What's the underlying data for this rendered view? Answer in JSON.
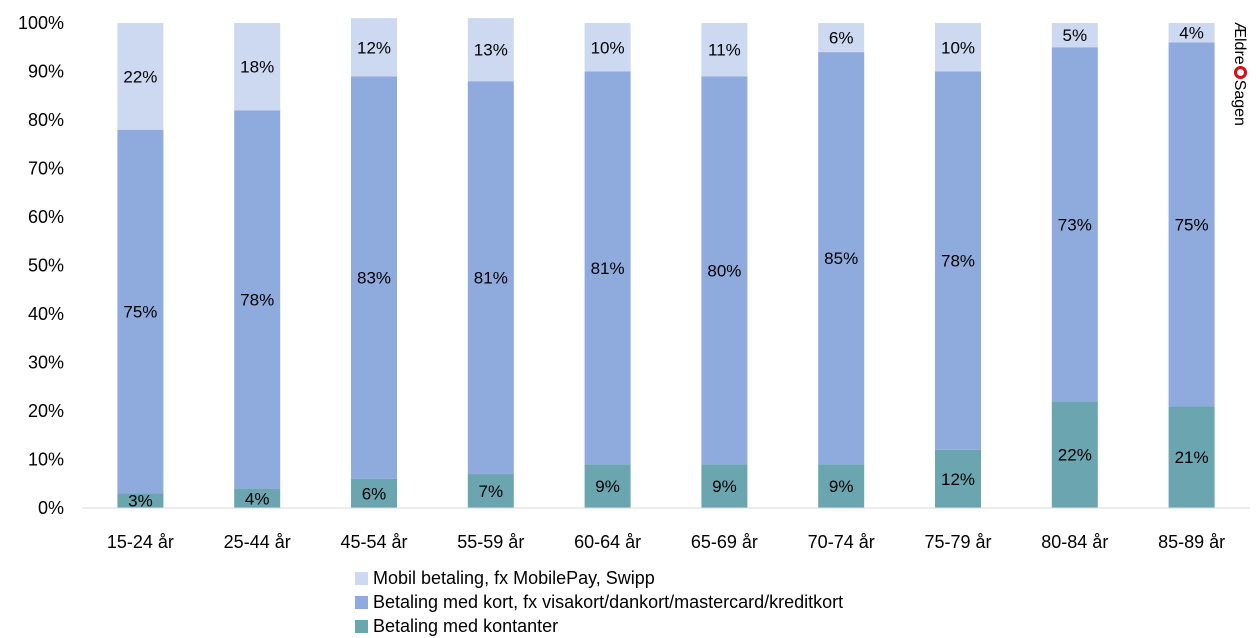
{
  "chart_data": {
    "type": "bar",
    "stacked": true,
    "categories": [
      "15-24 år",
      "25-44 år",
      "45-54 år",
      "55-59 år",
      "60-64 år",
      "65-69 år",
      "70-74 år",
      "75-79 år",
      "80-84 år",
      "85-89 år"
    ],
    "series": [
      {
        "name": "Betaling med kontanter",
        "color": "#6aa5b0",
        "values": [
          3,
          4,
          6,
          7,
          9,
          9,
          9,
          12,
          22,
          21
        ],
        "labels": [
          "3%",
          "4%",
          "6%",
          "7%",
          "9%",
          "9%",
          "9%",
          "12%",
          "22%",
          "21%"
        ]
      },
      {
        "name": "Betaling med kort, fx visakort/dankort/mastercard/kreditkort",
        "color": "#8faadc",
        "values": [
          75,
          78,
          83,
          81,
          81,
          80,
          85,
          78,
          73,
          75
        ],
        "labels": [
          "75%",
          "78%",
          "83%",
          "81%",
          "81%",
          "80%",
          "85%",
          "78%",
          "73%",
          "75%"
        ]
      },
      {
        "name": "Mobil betaling, fx MobilePay, Swipp",
        "color": "#ccd9f0",
        "values": [
          22,
          18,
          12,
          13,
          10,
          11,
          6,
          10,
          5,
          4
        ],
        "labels": [
          "22%",
          "18%",
          "12%",
          "13%",
          "10%",
          "11%",
          "6%",
          "10%",
          "5%",
          "4%"
        ]
      }
    ],
    "yticks": [
      "0%",
      "10%",
      "20%",
      "30%",
      "40%",
      "50%",
      "60%",
      "70%",
      "80%",
      "90%",
      "100%"
    ],
    "ylim": [
      0,
      100
    ],
    "grid": false,
    "legend_position": "bottom"
  },
  "legend": {
    "mobil": "Mobil betaling, fx MobilePay, Swipp",
    "kort": "Betaling med kort, fx visakort/dankort/mastercard/kreditkort",
    "kontanter": "Betaling med kontanter"
  },
  "brand": {
    "pre": "Ældre",
    "post": "Sagen",
    "color": "#e30613"
  }
}
